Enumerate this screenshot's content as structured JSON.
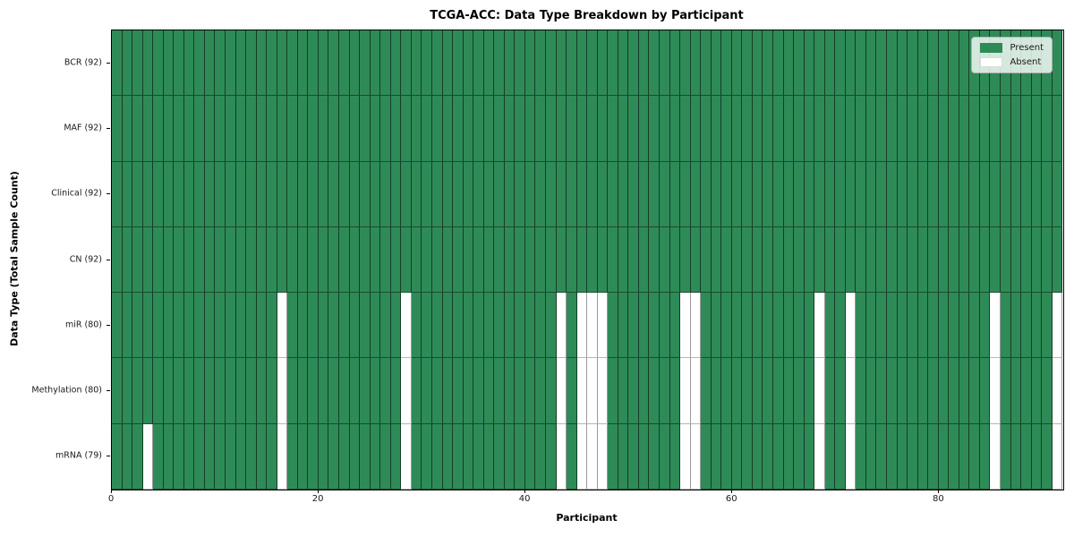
{
  "chart_data": {
    "type": "heatmap",
    "title": "TCGA-ACC: Data Type Breakdown by Participant",
    "xlabel": "Participant",
    "ylabel": "Data Type (Total Sample Count)",
    "x_ticks": [
      0,
      20,
      40,
      60,
      80
    ],
    "x_range": [
      0,
      92
    ],
    "n_participants": 92,
    "grid": "cell-borders",
    "legend_position": "upper-right",
    "legend": [
      {
        "label": "Present",
        "color": "#2e8b57"
      },
      {
        "label": "Absent",
        "color": "#ffffff"
      }
    ],
    "colors": {
      "present": "#2e8b57",
      "absent": "#ffffff"
    },
    "rows": [
      {
        "label": "BCR (92)",
        "present_count": 92,
        "absent_participants": []
      },
      {
        "label": "MAF (92)",
        "present_count": 92,
        "absent_participants": []
      },
      {
        "label": "Clinical (92)",
        "present_count": 92,
        "absent_participants": []
      },
      {
        "label": "CN (92)",
        "present_count": 92,
        "absent_participants": []
      },
      {
        "label": "miR (80)",
        "present_count": 80,
        "absent_participants": [
          16,
          28,
          43,
          45,
          46,
          47,
          55,
          56,
          68,
          71,
          85,
          91
        ]
      },
      {
        "label": "Methylation (80)",
        "present_count": 80,
        "absent_participants": [
          16,
          28,
          43,
          45,
          46,
          47,
          55,
          56,
          68,
          71,
          85,
          91
        ]
      },
      {
        "label": "mRNA (79)",
        "present_count": 79,
        "absent_participants": [
          3,
          16,
          28,
          43,
          45,
          46,
          47,
          55,
          56,
          68,
          71,
          85,
          91
        ]
      }
    ]
  }
}
